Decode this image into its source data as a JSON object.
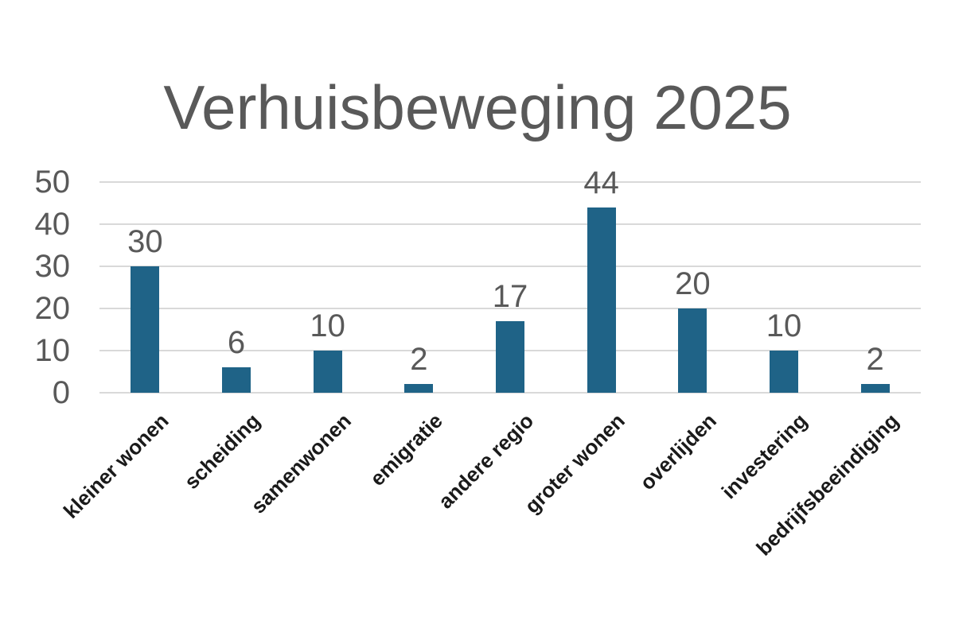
{
  "title": "Verhuisbeweging 2025",
  "chart_data": {
    "type": "bar",
    "title": "Verhuisbeweging 2025",
    "categories": [
      "kleiner wonen",
      "scheiding",
      "samenwonen",
      "emigratie",
      "andere regio",
      "groter wonen",
      "overlijden",
      "investering",
      "bedrijfsbeeindiging"
    ],
    "values": [
      30,
      6,
      10,
      2,
      17,
      44,
      20,
      10,
      2
    ],
    "xlabel": "",
    "ylabel": "",
    "ylim": [
      0,
      50
    ],
    "yticks": [
      0,
      10,
      20,
      30,
      40,
      50
    ],
    "grid": true,
    "legend_position": "none",
    "data_labels": true,
    "category_label_rotation_deg": 45
  },
  "colors": {
    "bar": "#1F6387",
    "gridline": "#D9D9D9",
    "axis_text": "#595959",
    "value_text": "#595959",
    "category_text": "#1A1A1A",
    "title_text": "#595959",
    "background": "#FFFFFF"
  }
}
